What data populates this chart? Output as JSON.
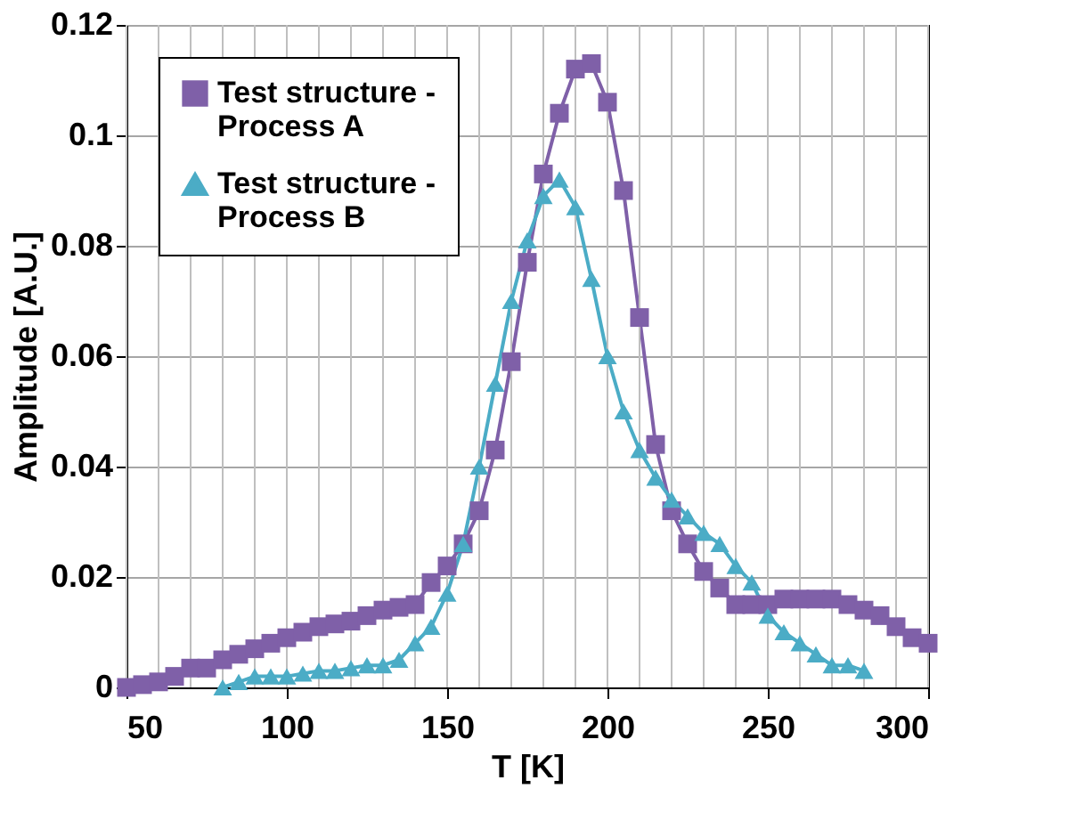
{
  "chart_data": {
    "type": "line",
    "xlabel": "T [K]",
    "ylabel": "Amplitude [A.U.]",
    "xlim": [
      50,
      300
    ],
    "xticks": [
      50,
      100,
      150,
      200,
      250,
      300
    ],
    "ylim": [
      0,
      0.12
    ],
    "yticks": [
      0,
      0.02,
      0.04,
      0.06,
      0.08,
      0.1,
      0.12
    ],
    "grid": true,
    "legend": "top left",
    "line_style": "solid",
    "series": [
      {
        "name": "Test structure - Process A",
        "color": "#7f60a8",
        "marker": "square",
        "x": [
          50,
          55,
          60,
          65,
          70,
          75,
          80,
          85,
          90,
          95,
          100,
          105,
          110,
          115,
          120,
          125,
          130,
          135,
          140,
          145,
          150,
          155,
          160,
          165,
          170,
          175,
          180,
          185,
          190,
          195,
          200,
          205,
          210,
          215,
          220,
          225,
          230,
          235,
          240,
          245,
          250,
          255,
          260,
          265,
          270,
          275,
          280,
          285,
          290,
          295,
          300
        ],
        "values": [
          0,
          0.0005,
          0.001,
          0.002,
          0.0035,
          0.0035,
          0.005,
          0.006,
          0.007,
          0.008,
          0.009,
          0.01,
          0.011,
          0.0115,
          0.012,
          0.013,
          0.014,
          0.0145,
          0.015,
          0.019,
          0.022,
          0.026,
          0.032,
          0.043,
          0.059,
          0.077,
          0.093,
          0.104,
          0.112,
          0.113,
          0.106,
          0.09,
          0.067,
          0.044,
          0.032,
          0.026,
          0.021,
          0.018,
          0.015,
          0.015,
          0.015,
          0.016,
          0.016,
          0.016,
          0.016,
          0.015,
          0.014,
          0.013,
          0.011,
          0.009,
          0.008
        ]
      },
      {
        "name": "Test structure - Process B",
        "color": "#4bacc6",
        "marker": "triangle",
        "x": [
          80,
          85,
          90,
          95,
          100,
          105,
          110,
          115,
          120,
          125,
          130,
          135,
          140,
          145,
          150,
          155,
          160,
          165,
          170,
          175,
          180,
          185,
          190,
          195,
          200,
          205,
          210,
          215,
          220,
          225,
          230,
          235,
          240,
          245,
          250,
          255,
          260,
          265,
          270,
          275,
          280
        ],
        "values": [
          0,
          0.001,
          0.002,
          0.002,
          0.002,
          0.0025,
          0.003,
          0.003,
          0.0035,
          0.004,
          0.004,
          0.005,
          0.008,
          0.011,
          0.017,
          0.026,
          0.04,
          0.055,
          0.07,
          0.081,
          0.089,
          0.092,
          0.087,
          0.074,
          0.06,
          0.05,
          0.043,
          0.038,
          0.034,
          0.031,
          0.028,
          0.026,
          0.022,
          0.019,
          0.013,
          0.01,
          0.008,
          0.006,
          0.004,
          0.004,
          0.003
        ]
      }
    ]
  }
}
